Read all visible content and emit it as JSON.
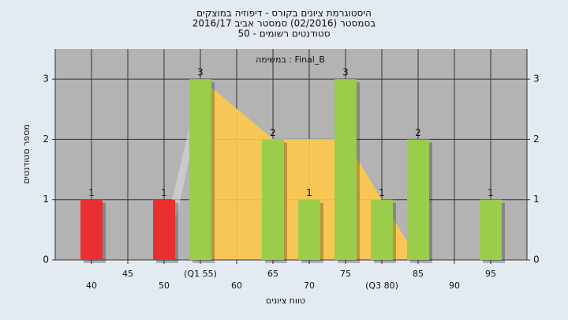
{
  "chart_data": {
    "type": "bar",
    "title": [
      "היסטוגרמת ציונים בקורס - דיפוזיה במוצקים",
      "בסמסטר (02/2016) סמסטר אביב 2016/17",
      "סטודנטים רשומים - 50"
    ],
    "annotation": "במשימה : Final_B",
    "ylabel": "מספר סטודנטים",
    "xlabel": "טווח ציונים",
    "categories": [
      "40",
      "45",
      "50",
      "(Q1 55)",
      "60",
      "65",
      "70",
      "75",
      "(Q3 80)",
      "85",
      "90",
      "95"
    ],
    "values": [
      1,
      0,
      1,
      3,
      0,
      2,
      1,
      3,
      1,
      2,
      0,
      1
    ],
    "colors": [
      "#e83030",
      null,
      "#e83030",
      "#9acd4a",
      null,
      "#9acd4a",
      "#9acd4a",
      "#9acd4a",
      "#9acd4a",
      "#9acd4a",
      null,
      "#9acd4a"
    ],
    "ylim": [
      0,
      3.5
    ],
    "yticks": [
      0,
      1,
      2,
      3
    ],
    "grid": true
  }
}
